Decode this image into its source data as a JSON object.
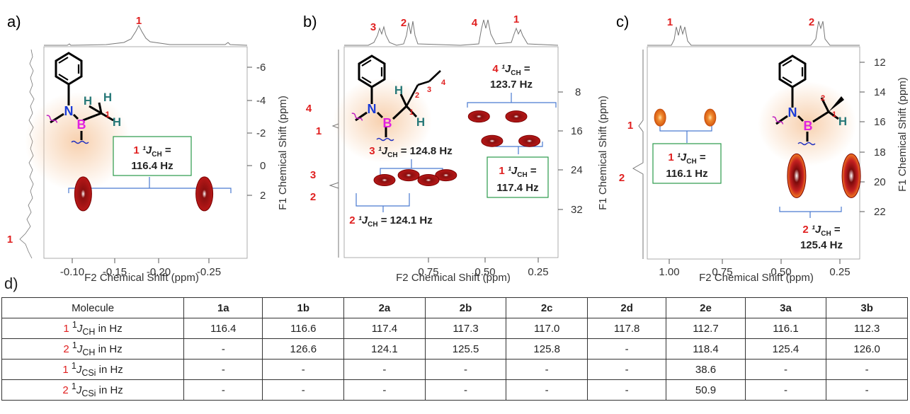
{
  "panels": {
    "a": {
      "label": "a)",
      "xlabel": "F2 Chemical Shift (ppm)",
      "ylabel": "F1 Chemical Shift (ppm)",
      "xticks": [
        "-0.10",
        "-0.15",
        "-0.20",
        "-0.25"
      ],
      "yticks": [
        "-6",
        "-4",
        "-2",
        "0",
        "2"
      ],
      "peak_labels": [
        "1",
        "1"
      ],
      "atom_labels": {
        "n": "N",
        "b": "B",
        "h": "H",
        "pos1": "1"
      },
      "coupling": {
        "num": "1",
        "line1": "¹J",
        "sub": "CH",
        "eq": " =",
        "value": "116.4 Hz"
      }
    },
    "b": {
      "label": "b)",
      "xlabel": "F2 Chemical Shift (ppm)",
      "ylabel": "F1 Chemical Shift (ppm)",
      "xticks": [
        "0.75",
        "0.50",
        "0.25"
      ],
      "yticks": [
        "8",
        "16",
        "24",
        "32"
      ],
      "top_peak_labels": [
        "3",
        "2",
        "4",
        "1"
      ],
      "left_peak_labels": [
        "4",
        "1",
        "3",
        "2"
      ],
      "atom_labels": {
        "n": "N",
        "b": "B",
        "h": "H",
        "p1": "1",
        "p2": "2",
        "p3": "3",
        "p4": "4"
      },
      "coupling4": {
        "num": "4",
        "j": "¹J",
        "sub": "CH",
        "eq": " =",
        "value": "123.7 Hz"
      },
      "coupling3": {
        "num": "3",
        "j": "¹J",
        "sub": "CH",
        "text": " = 124.8 Hz"
      },
      "coupling2": {
        "num": "2",
        "j": "¹J",
        "sub": "CH",
        "text": " = 124.1 Hz"
      },
      "coupling1": {
        "num": "1",
        "j": "¹J",
        "sub": "CH",
        "eq": " =",
        "value": "117.4 Hz"
      }
    },
    "c": {
      "label": "c)",
      "xlabel": "F2 Chemical Shift (ppm)",
      "ylabel": "F1 Chemical Shift (ppm)",
      "xticks": [
        "1.00",
        "0.75",
        "0.50",
        "0.25"
      ],
      "yticks": [
        "12",
        "14",
        "16",
        "18",
        "20",
        "22"
      ],
      "top_peak_labels": [
        "1",
        "2"
      ],
      "left_peak_labels": [
        "1",
        "2"
      ],
      "atom_labels": {
        "n": "N",
        "b": "B",
        "h": "H",
        "p1": "1",
        "p2": "2"
      },
      "coupling1": {
        "num": "1",
        "j": "¹J",
        "sub": "CH",
        "eq": " =",
        "value": "116.1 Hz"
      },
      "coupling2": {
        "num": "2",
        "j": "¹J",
        "sub": "CH",
        "eq": " =",
        "value": "125.4 Hz"
      }
    }
  },
  "table": {
    "label": "d)",
    "header": [
      "Molecule",
      "1a",
      "1b",
      "2a",
      "2b",
      "2c",
      "2d",
      "2e",
      "3a",
      "3b"
    ],
    "rows": [
      {
        "num": "1",
        "sup": "1",
        "j": "J",
        "sub": "CH",
        "suffix": " in Hz",
        "values": [
          "116.4",
          "116.6",
          "117.4",
          "117.3",
          "117.0",
          "117.8",
          "112.7",
          "116.1",
          "112.3"
        ]
      },
      {
        "num": "2",
        "sup": "1",
        "j": "J",
        "sub": "CH",
        "suffix": " in Hz",
        "values": [
          "-",
          "126.6",
          "124.1",
          "125.5",
          "125.8",
          "-",
          "118.4",
          "125.4",
          "126.0"
        ]
      },
      {
        "num": "1",
        "sup": "1",
        "j": "J",
        "sub": "CSi",
        "suffix": " in Hz",
        "values": [
          "-",
          "-",
          "-",
          "-",
          "-",
          "-",
          "38.6",
          "-",
          "-"
        ]
      },
      {
        "num": "2",
        "sup": "1",
        "j": "J",
        "sub": "CSi",
        "suffix": " in Hz",
        "values": [
          "-",
          "-",
          "-",
          "-",
          "-",
          "-",
          "50.9",
          "-",
          "-"
        ]
      }
    ]
  },
  "chart_data": [
    {
      "type": "heatmap",
      "title": "a)",
      "xlabel": "F2 Chemical Shift (ppm)",
      "ylabel": "F1 Chemical Shift (ppm)",
      "xlim": [
        -0.06,
        -0.28
      ],
      "ylim": [
        -7,
        3
      ],
      "cross_peaks": [
        {
          "label": "1",
          "x": -0.112,
          "y": 1.9
        },
        {
          "label": "1",
          "x": -0.245,
          "y": 1.9
        }
      ],
      "couplings": [
        {
          "label": "1",
          "J_CH_Hz": 116.4
        }
      ]
    },
    {
      "type": "heatmap",
      "title": "b)",
      "xlabel": "F2 Chemical Shift (ppm)",
      "ylabel": "F1 Chemical Shift (ppm)",
      "xlim": [
        1.0,
        0.18
      ],
      "ylim": [
        0,
        36
      ],
      "cross_peaks": [
        {
          "label": "4",
          "x": 0.52,
          "y": 13
        },
        {
          "label": "4",
          "x": 0.35,
          "y": 13
        },
        {
          "label": "1",
          "x": 0.46,
          "y": 18
        },
        {
          "label": "1",
          "x": 0.29,
          "y": 18
        },
        {
          "label": "3",
          "x": 0.84,
          "y": 25
        },
        {
          "label": "3",
          "x": 0.67,
          "y": 25
        },
        {
          "label": "2",
          "x": 0.95,
          "y": 26
        },
        {
          "label": "2",
          "x": 0.75,
          "y": 26
        }
      ],
      "couplings": [
        {
          "label": "4",
          "J_CH_Hz": 123.7
        },
        {
          "label": "3",
          "J_CH_Hz": 124.8
        },
        {
          "label": "2",
          "J_CH_Hz": 124.1
        },
        {
          "label": "1",
          "J_CH_Hz": 117.4
        }
      ]
    },
    {
      "type": "heatmap",
      "title": "c)",
      "xlabel": "F2 Chemical Shift (ppm)",
      "ylabel": "F1 Chemical Shift (ppm)",
      "xlim": [
        1.1,
        0.15
      ],
      "ylim": [
        10,
        24
      ],
      "cross_peaks": [
        {
          "label": "1",
          "x": 1.04,
          "y": 15.7
        },
        {
          "label": "1",
          "x": 0.82,
          "y": 15.7
        },
        {
          "label": "2",
          "x": 0.44,
          "y": 19.6
        },
        {
          "label": "2",
          "x": 0.2,
          "y": 19.6
        }
      ],
      "couplings": [
        {
          "label": "1",
          "J_CH_Hz": 116.1
        },
        {
          "label": "2",
          "J_CH_Hz": 125.4
        }
      ]
    }
  ]
}
